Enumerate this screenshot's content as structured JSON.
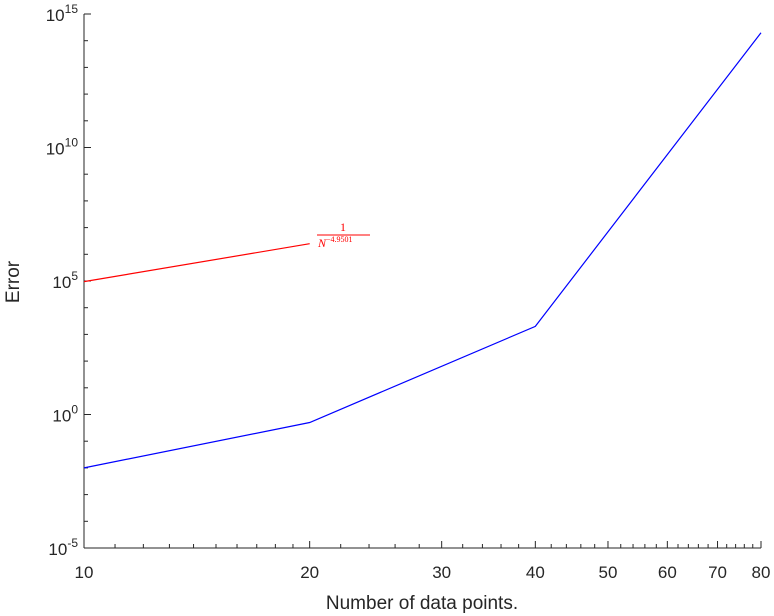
{
  "chart_data": {
    "type": "line",
    "xlabel": "Number of data points.",
    "ylabel": "Error",
    "x_scale": "log",
    "y_scale": "log",
    "xlim": [
      10,
      80
    ],
    "ylim": [
      1e-05,
      1000000000000000.0
    ],
    "x_ticks": [
      10,
      20,
      30,
      40,
      50,
      60,
      70,
      80
    ],
    "x_tick_labels": [
      "10",
      "20",
      "30",
      "40",
      "50",
      "60",
      "70",
      "80"
    ],
    "y_ticks": [
      {
        "value": 1e-05,
        "base": "10",
        "exp": "-5"
      },
      {
        "value": 1,
        "base": "10",
        "exp": "0"
      },
      {
        "value": 100000.0,
        "base": "10",
        "exp": "5"
      },
      {
        "value": 10000000000.0,
        "base": "10",
        "exp": "10"
      },
      {
        "value": 1000000000000000.0,
        "base": "10",
        "exp": "15"
      }
    ],
    "grid": false,
    "series": [
      {
        "color": "#0000ff",
        "x": [
          10,
          20,
          40,
          80
        ],
        "y": [
          0.01,
          0.5,
          2000,
          200000000000000.0
        ]
      },
      {
        "color": "#ff0000",
        "x": [
          10,
          20
        ],
        "y": [
          95000,
          2500000.0
        ]
      }
    ],
    "annotation": {
      "numerator": "1",
      "denominator_base": "N",
      "denominator_exp": "−4.9501",
      "color": "#ff0000"
    }
  }
}
